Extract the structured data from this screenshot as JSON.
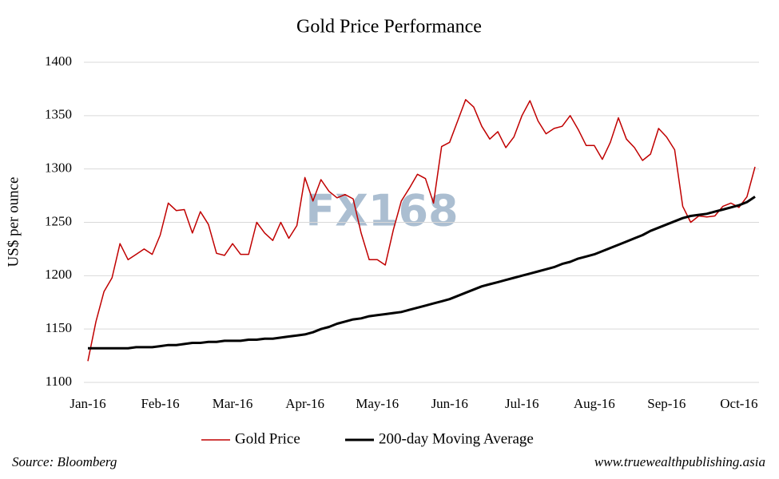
{
  "chart_data": {
    "type": "line",
    "title": "Gold Price Performance",
    "y_label": "US$ per ounce",
    "categories": [
      "Jan-16",
      null,
      null,
      null,
      null,
      null,
      null,
      null,
      null,
      "Feb-16",
      null,
      null,
      null,
      null,
      null,
      null,
      null,
      null,
      "Mar-16",
      null,
      null,
      null,
      null,
      null,
      null,
      null,
      null,
      "Apr-16",
      null,
      null,
      null,
      null,
      null,
      null,
      null,
      null,
      "May-16",
      null,
      null,
      null,
      null,
      null,
      null,
      null,
      null,
      "Jun-16",
      null,
      null,
      null,
      null,
      null,
      null,
      null,
      null,
      "Jul-16",
      null,
      null,
      null,
      null,
      null,
      null,
      null,
      null,
      "Aug-16",
      null,
      null,
      null,
      null,
      null,
      null,
      null,
      null,
      "Sep-16",
      null,
      null,
      null,
      null,
      null,
      null,
      null,
      null,
      "Oct-16",
      null,
      null
    ],
    "series": [
      {
        "name": "Gold Price",
        "color": "#c00000",
        "width": 1.5,
        "values": [
          1120,
          1157,
          1185,
          1198,
          1230,
          1215,
          1220,
          1225,
          1220,
          1238,
          1268,
          1261,
          1262,
          1240,
          1260,
          1248,
          1221,
          1219,
          1230,
          1220,
          1220,
          1250,
          1240,
          1233,
          1250,
          1235,
          1247,
          1292,
          1270,
          1290,
          1279,
          1273,
          1276,
          1272,
          1240,
          1215,
          1215,
          1210,
          1243,
          1270,
          1282,
          1295,
          1291,
          1268,
          1321,
          1325,
          1345,
          1365,
          1358,
          1340,
          1328,
          1335,
          1320,
          1330,
          1350,
          1364,
          1345,
          1333,
          1338,
          1340,
          1350,
          1337,
          1322,
          1322,
          1309,
          1325,
          1348,
          1328,
          1320,
          1308,
          1314,
          1338,
          1330,
          1318,
          1265,
          1250,
          1256,
          1255,
          1256,
          1265,
          1268,
          1264,
          1274,
          1302
        ]
      },
      {
        "name": "200-day Moving Average",
        "color": "#000000",
        "width": 3,
        "values": [
          1132,
          1132,
          1132,
          1132,
          1132,
          1132,
          1133,
          1133,
          1133,
          1134,
          1135,
          1135,
          1136,
          1137,
          1137,
          1138,
          1138,
          1139,
          1139,
          1139,
          1140,
          1140,
          1141,
          1141,
          1142,
          1143,
          1144,
          1145,
          1147,
          1150,
          1152,
          1155,
          1157,
          1159,
          1160,
          1162,
          1163,
          1164,
          1165,
          1166,
          1168,
          1170,
          1172,
          1174,
          1176,
          1178,
          1181,
          1184,
          1187,
          1190,
          1192,
          1194,
          1196,
          1198,
          1200,
          1202,
          1204,
          1206,
          1208,
          1211,
          1213,
          1216,
          1218,
          1220,
          1223,
          1226,
          1229,
          1232,
          1235,
          1238,
          1242,
          1245,
          1248,
          1251,
          1254,
          1256,
          1257,
          1258,
          1260,
          1262,
          1264,
          1266,
          1269,
          1274
        ]
      }
    ],
    "ylim": [
      1100,
      1400
    ],
    "yticks": [
      1100,
      1150,
      1200,
      1250,
      1300,
      1350,
      1400
    ],
    "grid": true,
    "legend": "bottom",
    "watermark": "FX168",
    "source": "Source: Bloomberg",
    "website": "www.truewealthpublishing.asia"
  }
}
